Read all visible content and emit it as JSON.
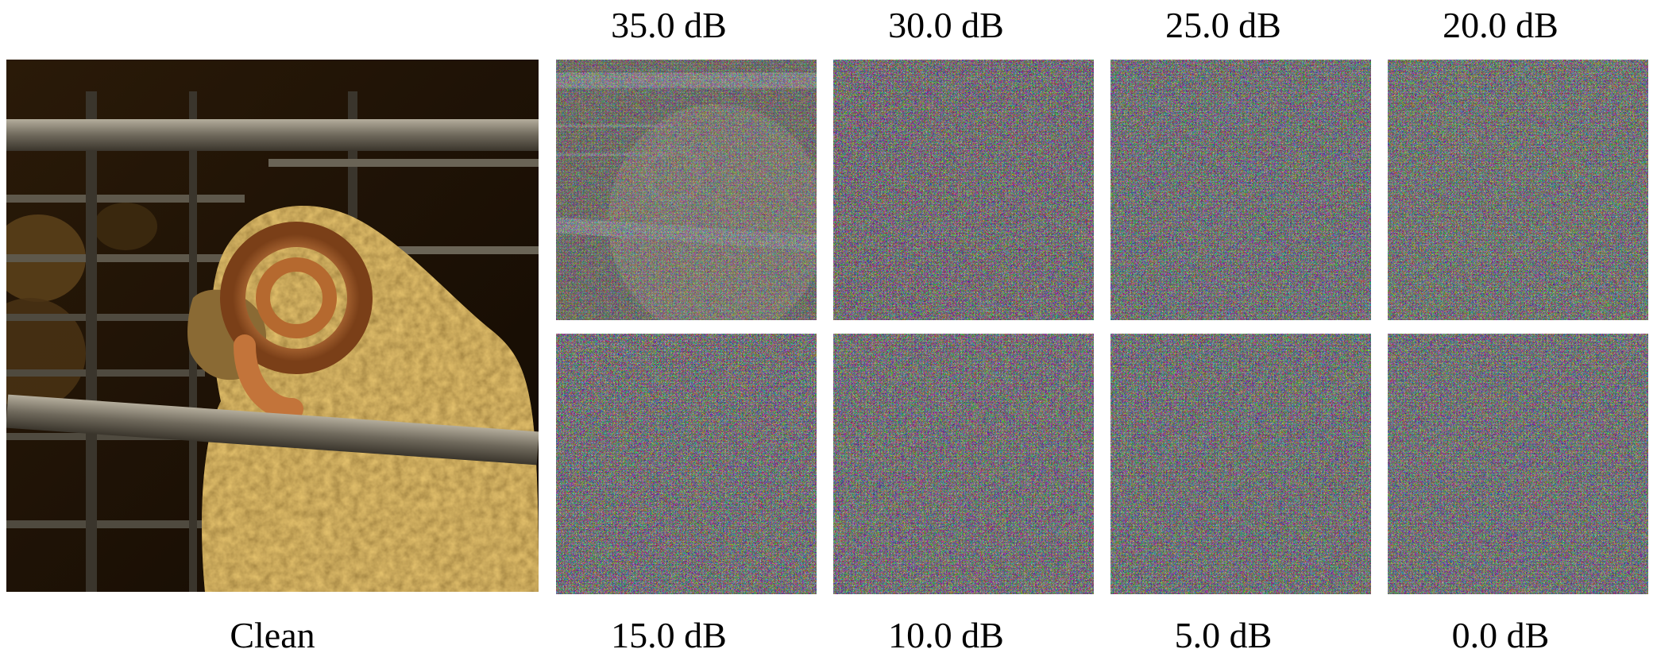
{
  "figure": {
    "clean_label": "Clean",
    "noise_panels": [
      {
        "label": "35.0 dB",
        "snr_db": 35.0,
        "signal_visibility": 0.55
      },
      {
        "label": "30.0 dB",
        "snr_db": 30.0,
        "signal_visibility": 0.12
      },
      {
        "label": "25.0 dB",
        "snr_db": 25.0,
        "signal_visibility": 0.0
      },
      {
        "label": "20.0 dB",
        "snr_db": 20.0,
        "signal_visibility": 0.0
      },
      {
        "label": "15.0 dB",
        "snr_db": 15.0,
        "signal_visibility": 0.0
      },
      {
        "label": "10.0 dB",
        "snr_db": 10.0,
        "signal_visibility": 0.0
      },
      {
        "label": "5.0 dB",
        "snr_db": 5.0,
        "signal_visibility": 0.0
      },
      {
        "label": "0.0 dB",
        "snr_db": 0.0,
        "signal_visibility": 0.0
      }
    ],
    "colors": {
      "background": "#ffffff",
      "wool": "#8a6a2c",
      "horn": "#c3743a",
      "rail": "#7a7466",
      "shadow": "#1a1005",
      "noise_base": "#8a8a86"
    }
  }
}
